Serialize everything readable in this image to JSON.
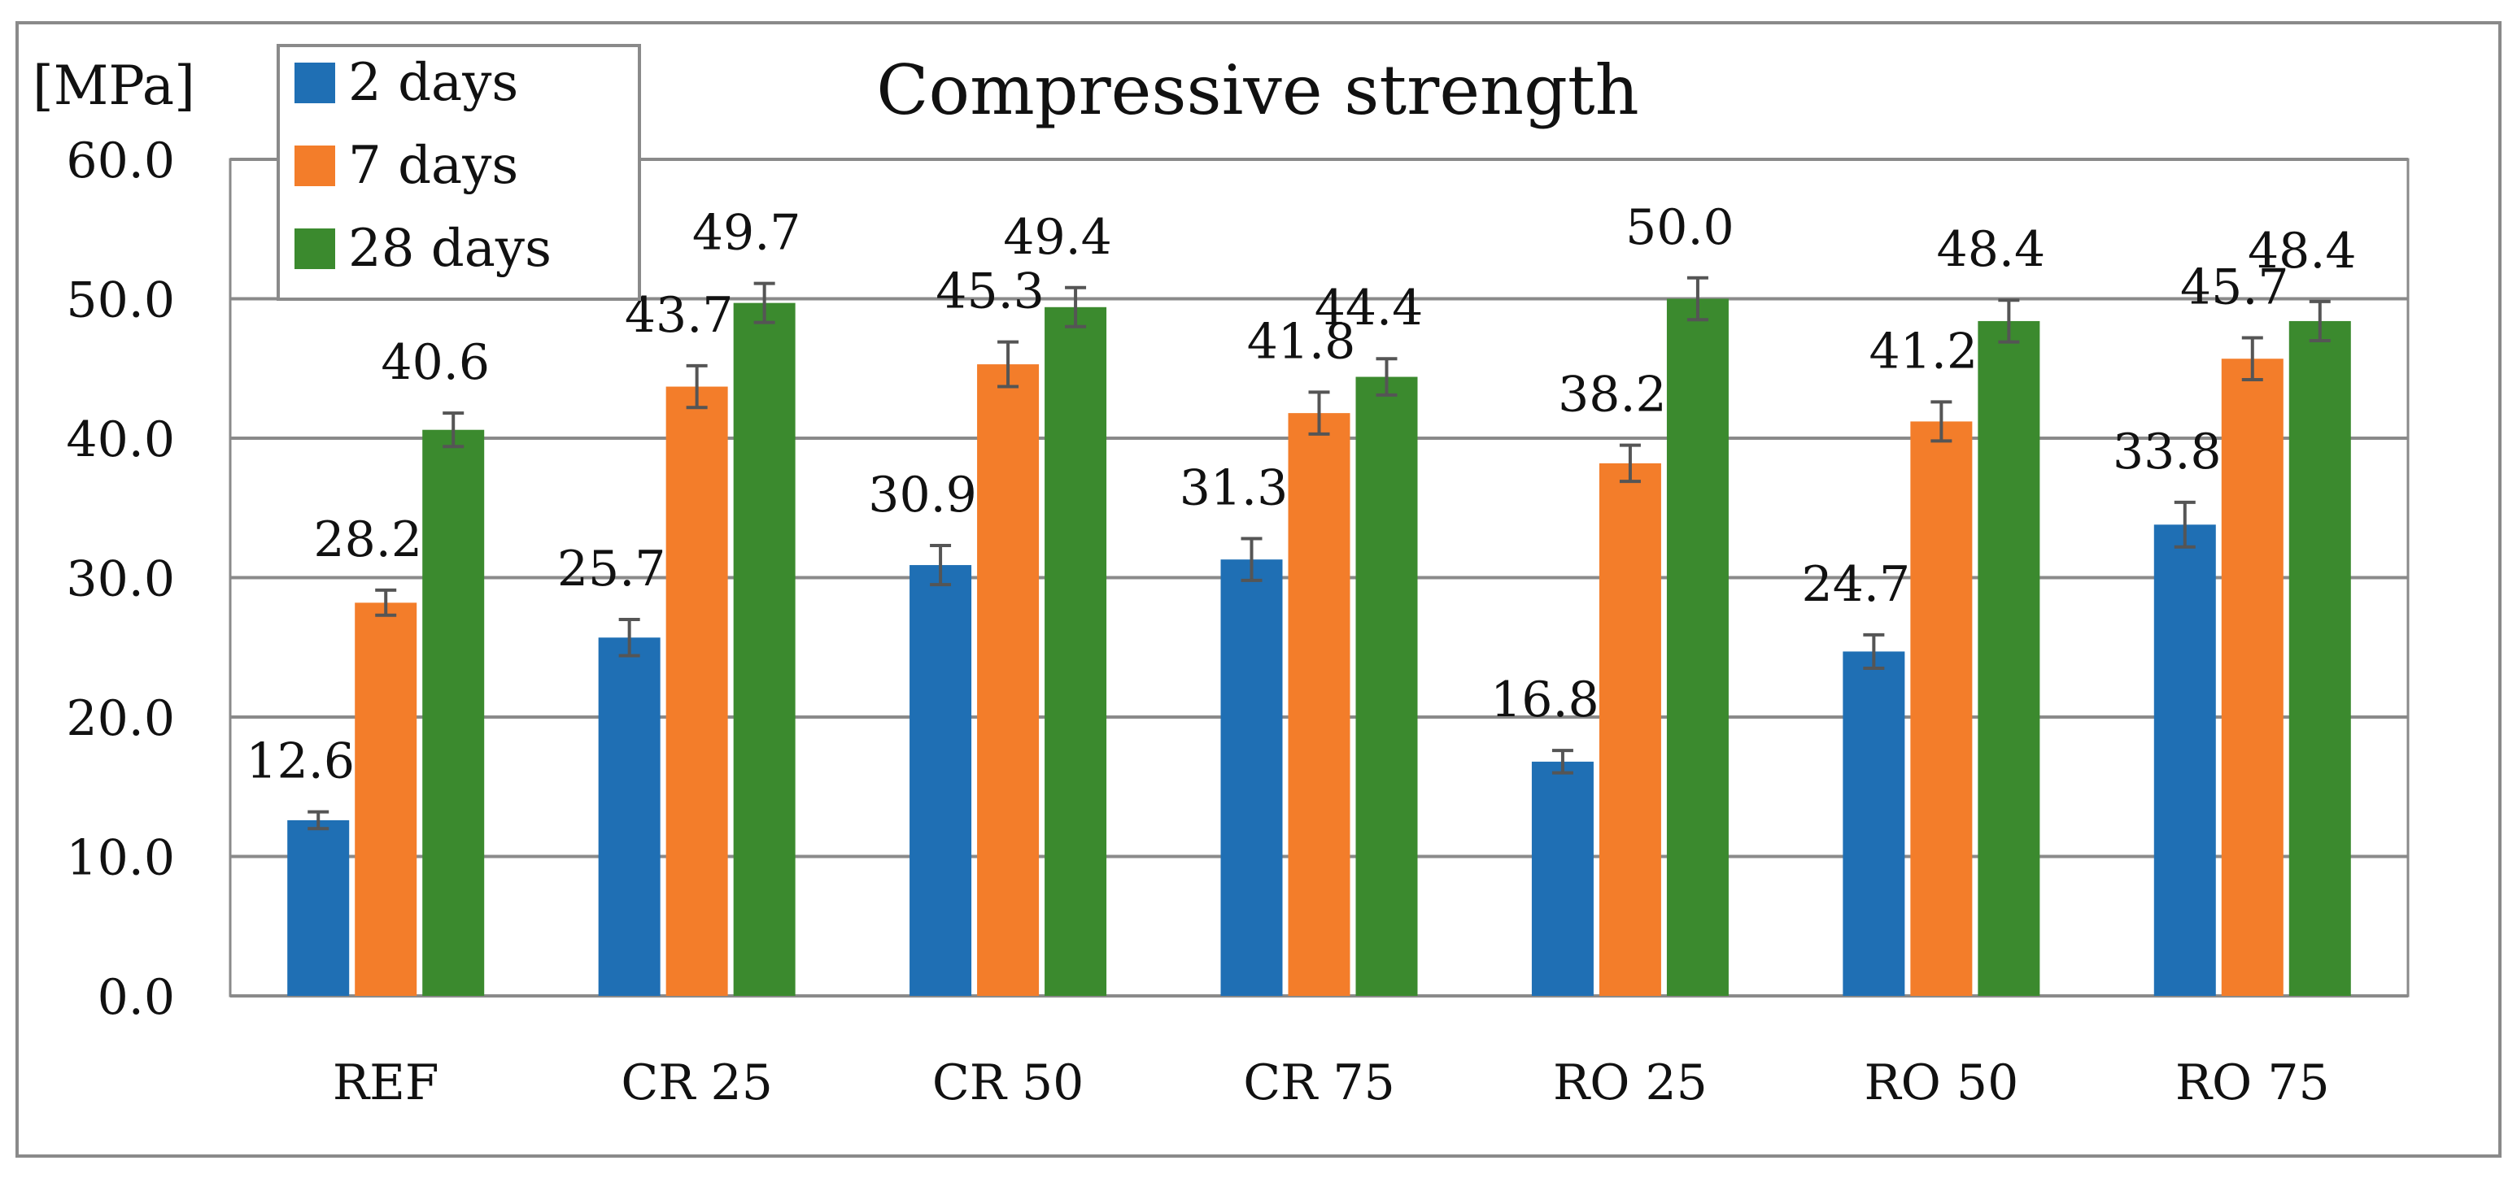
{
  "chart_data": {
    "type": "bar",
    "title": "Compressive strength",
    "ylabel": "[MPa]",
    "xlabel": "",
    "ylim": [
      0,
      60
    ],
    "yticks": [
      0,
      10,
      20,
      30,
      40,
      50,
      60
    ],
    "ytick_labels": [
      "0.0",
      "10.0",
      "20.0",
      "30.0",
      "40.0",
      "50.0",
      "60.0"
    ],
    "grid": true,
    "legend_position": "top-left",
    "categories": [
      "REF",
      "CR 25",
      "CR 50",
      "CR 75",
      "RO 25",
      "RO 50",
      "RO 75"
    ],
    "series": [
      {
        "name": "2 days",
        "color": "#1f6fb4",
        "values": [
          12.6,
          25.7,
          30.9,
          31.3,
          16.8,
          24.7,
          33.8
        ],
        "labels": [
          "12.6",
          "25.7",
          "30.9",
          "31.3",
          "16.8",
          "24.7",
          "33.8"
        ],
        "errors": [
          0.6,
          1.3,
          1.4,
          1.5,
          0.8,
          1.2,
          1.6
        ]
      },
      {
        "name": "7 days",
        "color": "#f37d2a",
        "values": [
          28.2,
          43.7,
          45.3,
          41.8,
          38.2,
          41.2,
          45.7
        ],
        "labels": [
          "28.2",
          "43.7",
          "45.3",
          "41.8",
          "38.2",
          "41.2",
          "45.7"
        ],
        "errors": [
          0.9,
          1.5,
          1.6,
          1.5,
          1.3,
          1.4,
          1.5
        ]
      },
      {
        "name": "28 days",
        "color": "#3b8a2e",
        "values": [
          40.6,
          49.7,
          49.4,
          44.4,
          50.0,
          48.4,
          48.4
        ],
        "labels": [
          "40.6",
          "49.7",
          "49.4",
          "44.4",
          "50.0",
          "48.4",
          "48.4"
        ],
        "errors": [
          1.2,
          1.4,
          1.4,
          1.3,
          1.5,
          1.5,
          1.4
        ]
      }
    ]
  }
}
